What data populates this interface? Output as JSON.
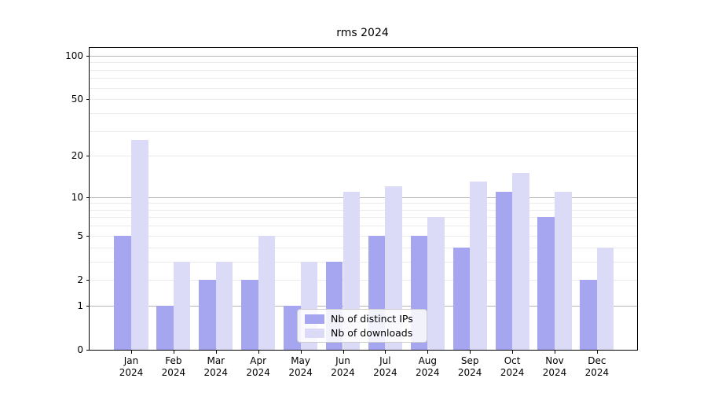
{
  "chart_data": {
    "type": "bar",
    "title": "rms 2024",
    "categories": [
      "Jan 2024",
      "Feb 2024",
      "Mar 2024",
      "Apr 2024",
      "May 2024",
      "Jun 2024",
      "Jul 2024",
      "Aug 2024",
      "Sep 2024",
      "Oct 2024",
      "Nov 2024",
      "Dec 2024"
    ],
    "series": [
      {
        "name": "Nb of distinct IPs",
        "color": "#a5a5f0",
        "values": [
          5,
          1,
          2,
          2,
          1,
          3,
          5,
          5,
          4,
          11,
          7,
          2
        ]
      },
      {
        "name": "Nb of downloads",
        "color": "#dbdbf8",
        "values": [
          26,
          3,
          3,
          5,
          3,
          11,
          12,
          7,
          13,
          15,
          11,
          4
        ]
      }
    ],
    "xlabel": "",
    "ylabel": "",
    "yticks": [
      0,
      1,
      2,
      5,
      10,
      20,
      50,
      100
    ],
    "scale": "log1p",
    "ylim": [
      0,
      113
    ],
    "grid": "on",
    "legend_position": "inside lower-center"
  },
  "colors": {
    "grid_major": "#b4b4b4",
    "grid_minor": "#ebebeb",
    "axis": "#000000",
    "background": "#ffffff"
  }
}
